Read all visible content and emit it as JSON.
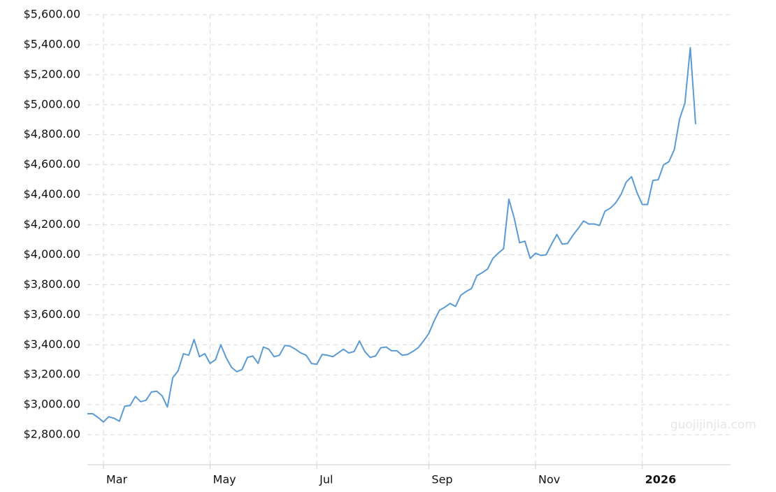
{
  "chart_data": {
    "type": "line",
    "watermark": "guojijinjia.com",
    "categories": [
      null,
      null,
      null,
      "Mar",
      null,
      null,
      null,
      null,
      null,
      null,
      null,
      null,
      null,
      null,
      null,
      null,
      null,
      null,
      null,
      null,
      null,
      null,
      null,
      "May",
      null,
      null,
      null,
      null,
      null,
      null,
      null,
      null,
      null,
      null,
      null,
      null,
      null,
      null,
      null,
      null,
      null,
      null,
      null,
      "Jul",
      null,
      null,
      null,
      null,
      null,
      null,
      null,
      null,
      null,
      null,
      null,
      null,
      null,
      null,
      null,
      null,
      null,
      null,
      null,
      null,
      "Sep",
      null,
      null,
      null,
      null,
      null,
      null,
      null,
      null,
      null,
      null,
      null,
      null,
      null,
      null,
      null,
      null,
      null,
      null,
      null,
      "Nov",
      null,
      null,
      null,
      null,
      null,
      null,
      null,
      null,
      null,
      null,
      null,
      null,
      null,
      null,
      null,
      null,
      null,
      null,
      null,
      "2026",
      null,
      null,
      null,
      null,
      null,
      null,
      null,
      null,
      null,
      null
    ],
    "series": [
      {
        "color": "#5b9bd5",
        "values": [
          2940,
          2940,
          2915,
          2885,
          2920,
          2910,
          2890,
          2990,
          2995,
          3055,
          3020,
          3030,
          3085,
          3090,
          3060,
          2985,
          3180,
          3225,
          3340,
          3330,
          3435,
          3320,
          3340,
          3275,
          3300,
          3400,
          3315,
          3250,
          3220,
          3235,
          3315,
          3325,
          3275,
          3385,
          3370,
          3320,
          3330,
          3395,
          3390,
          3370,
          3345,
          3330,
          3275,
          3270,
          3335,
          3330,
          3320,
          3345,
          3370,
          3345,
          3355,
          3425,
          3355,
          3315,
          3325,
          3380,
          3385,
          3360,
          3360,
          3330,
          3335,
          3355,
          3380,
          3425,
          3475,
          3560,
          3630,
          3650,
          3675,
          3655,
          3730,
          3755,
          3775,
          3860,
          3880,
          3905,
          3975,
          4010,
          4040,
          4370,
          4245,
          4080,
          4090,
          3975,
          4010,
          3995,
          4000,
          4070,
          4135,
          4070,
          4075,
          4130,
          4175,
          4225,
          4205,
          4205,
          4195,
          4290,
          4310,
          4345,
          4400,
          4485,
          4520,
          4415,
          4335,
          4335,
          4495,
          4500,
          4600,
          4620,
          4700,
          4905,
          5010,
          5380,
          4870
        ]
      }
    ],
    "ylim": [
      2600,
      5600
    ],
    "yticks": [
      {
        "value": 2800,
        "label": "$2,800.00"
      },
      {
        "value": 3000,
        "label": "$3,000.00"
      },
      {
        "value": 3200,
        "label": "$3,200.00"
      },
      {
        "value": 3400,
        "label": "$3,400.00"
      },
      {
        "value": 3600,
        "label": "$3,600.00"
      },
      {
        "value": 3800,
        "label": "$3,800.00"
      },
      {
        "value": 4000,
        "label": "$4,000.00"
      },
      {
        "value": 4200,
        "label": "$4,200.00"
      },
      {
        "value": 4400,
        "label": "$4,400.00"
      },
      {
        "value": 4600,
        "label": "$4,600.00"
      },
      {
        "value": 4800,
        "label": "$4,800.00"
      },
      {
        "value": 5000,
        "label": "$5,000.00"
      },
      {
        "value": 5200,
        "label": "$5,200.00"
      },
      {
        "value": 5400,
        "label": "$5,400.00"
      },
      {
        "value": 5600,
        "label": "$5,600.00"
      }
    ],
    "grid": true
  }
}
